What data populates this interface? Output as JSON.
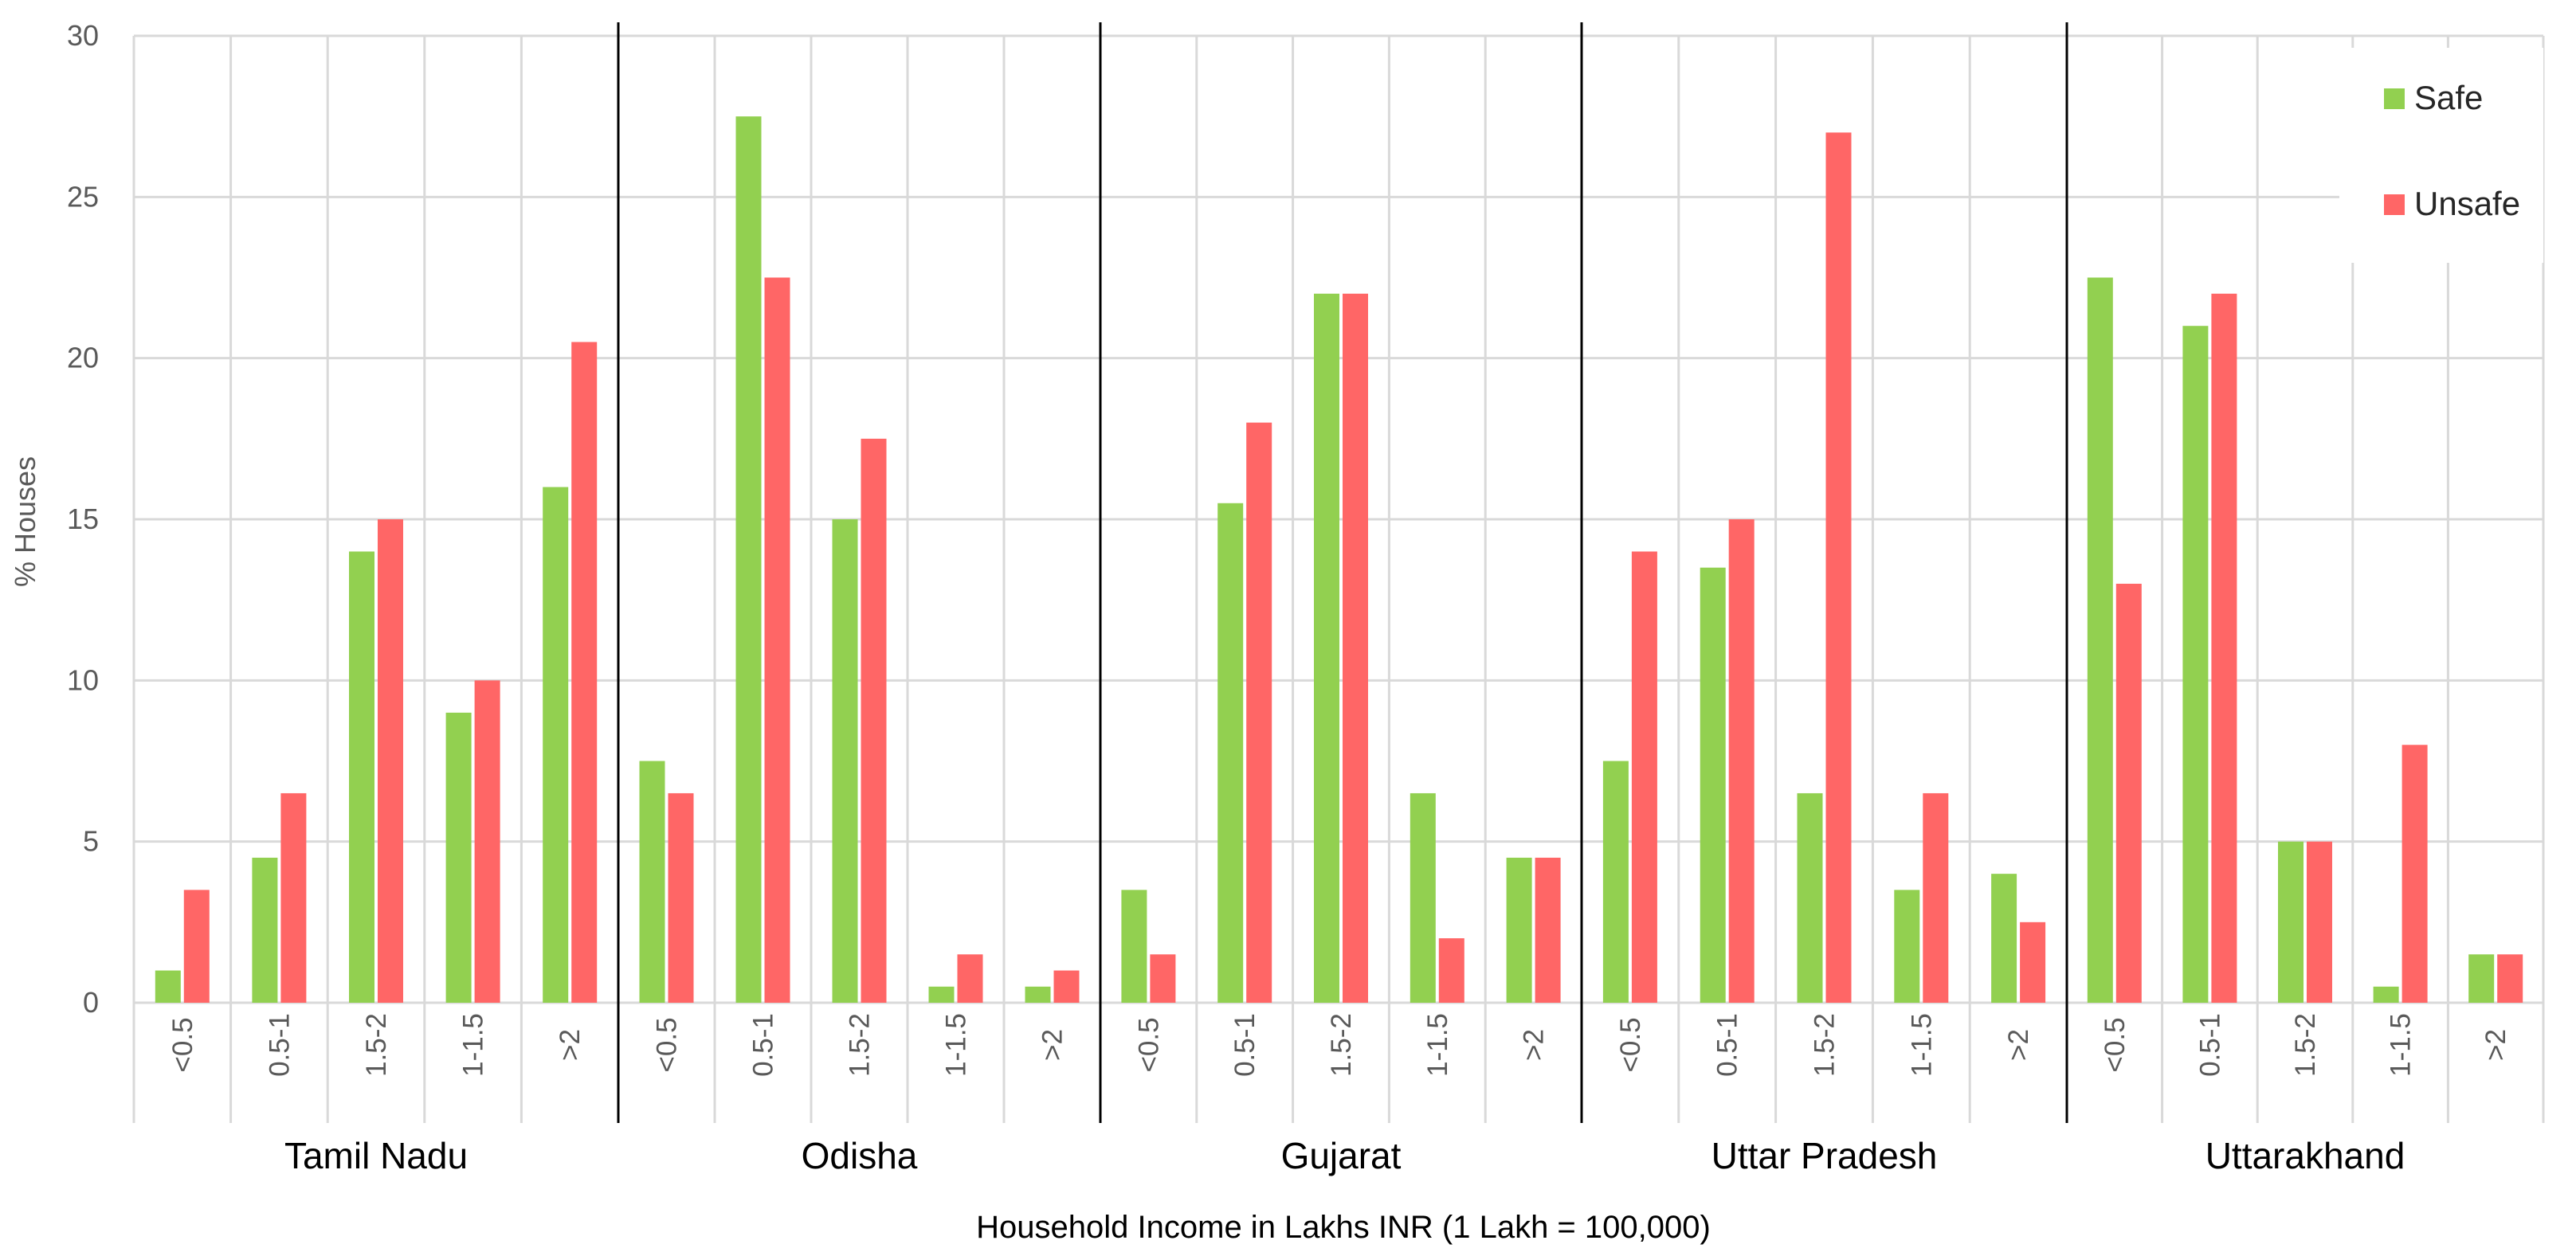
{
  "chart_data": {
    "type": "bar",
    "ylabel": "% Houses",
    "xlabel": "Household Income in Lakhs INR (1 Lakh = 100,000)",
    "ylim": [
      0,
      30
    ],
    "yticks": [
      0,
      5,
      10,
      15,
      20,
      25,
      30
    ],
    "grid": true,
    "legend": {
      "placement": "top-right",
      "entries": [
        "Safe",
        "Unsafe"
      ]
    },
    "categories": [
      "<0.5",
      "0.5-1",
      "1.5-2",
      "1-1.5",
      ">2"
    ],
    "colors": {
      "Safe": "#92d050",
      "Unsafe": "#ff6666",
      "grid": "#d9d9d9",
      "separator": "#000000"
    },
    "groups": [
      {
        "name": "Tamil Nadu",
        "series": [
          {
            "name": "Safe",
            "values": [
              1,
              4.5,
              14,
              9,
              16
            ]
          },
          {
            "name": "Unsafe",
            "values": [
              3.5,
              6.5,
              15,
              10,
              20.5
            ]
          }
        ]
      },
      {
        "name": "Odisha",
        "series": [
          {
            "name": "Safe",
            "values": [
              7.5,
              27.5,
              15,
              0.5,
              0.5
            ]
          },
          {
            "name": "Unsafe",
            "values": [
              6.5,
              22.5,
              17.5,
              1.5,
              1
            ]
          }
        ]
      },
      {
        "name": "Gujarat",
        "series": [
          {
            "name": "Safe",
            "values": [
              3.5,
              15.5,
              22,
              6.5,
              4.5
            ]
          },
          {
            "name": "Unsafe",
            "values": [
              1.5,
              18,
              22,
              2,
              4.5
            ]
          }
        ]
      },
      {
        "name": "Uttar Pradesh",
        "series": [
          {
            "name": "Safe",
            "values": [
              7.5,
              13.5,
              6.5,
              3.5,
              4
            ]
          },
          {
            "name": "Unsafe",
            "values": [
              14,
              15,
              27,
              6.5,
              2.5
            ]
          }
        ]
      },
      {
        "name": "Uttarakhand",
        "series": [
          {
            "name": "Safe",
            "values": [
              22.5,
              21,
              5,
              0.5,
              1.5
            ]
          },
          {
            "name": "Unsafe",
            "values": [
              13,
              22,
              5,
              8,
              1.5
            ]
          }
        ]
      }
    ]
  }
}
